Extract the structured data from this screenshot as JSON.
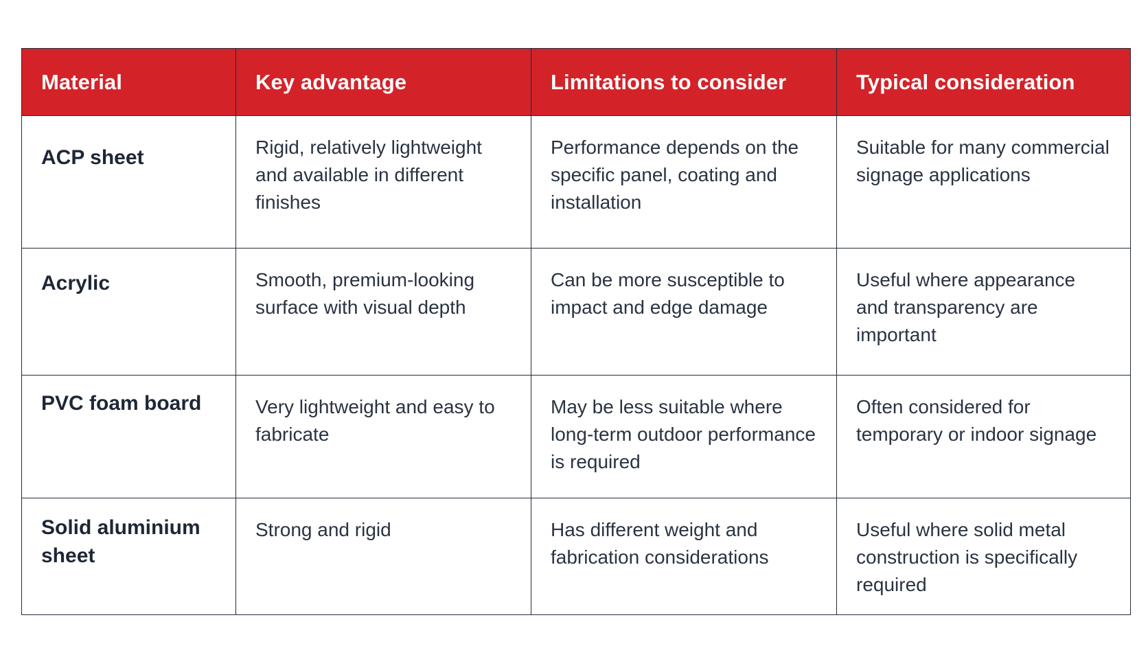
{
  "table": {
    "headers": [
      "Material",
      "Key advantage",
      "Limitations to consider",
      "Typical consideration"
    ],
    "rows": [
      {
        "material": "ACP sheet",
        "advantage": "Rigid, relatively lightweight and available in different finishes",
        "limitations": "Performance depends on the specific panel, coating and installation",
        "consideration": "Suitable for many commercial signage applications"
      },
      {
        "material": "Acrylic",
        "advantage": "Smooth, premium-looking surface with visual depth",
        "limitations": "Can be more susceptible to impact and edge damage",
        "consideration": "Useful where appearance and transparency are important"
      },
      {
        "material": "PVC foam board",
        "advantage": "Very lightweight and easy to fabricate",
        "limitations": "May be less suitable where long-term outdoor performance is required",
        "consideration": "Often considered for temporary or indoor signage"
      },
      {
        "material": "Solid aluminium sheet",
        "advantage": "Strong and rigid",
        "limitations": "Has different weight and fabrication considerations",
        "consideration": "Useful where solid metal construction is specifically required"
      }
    ]
  },
  "colors": {
    "header_background": "#d42229",
    "header_text": "#ffffff",
    "border": "#232b38",
    "body_text": "#2a3342"
  }
}
